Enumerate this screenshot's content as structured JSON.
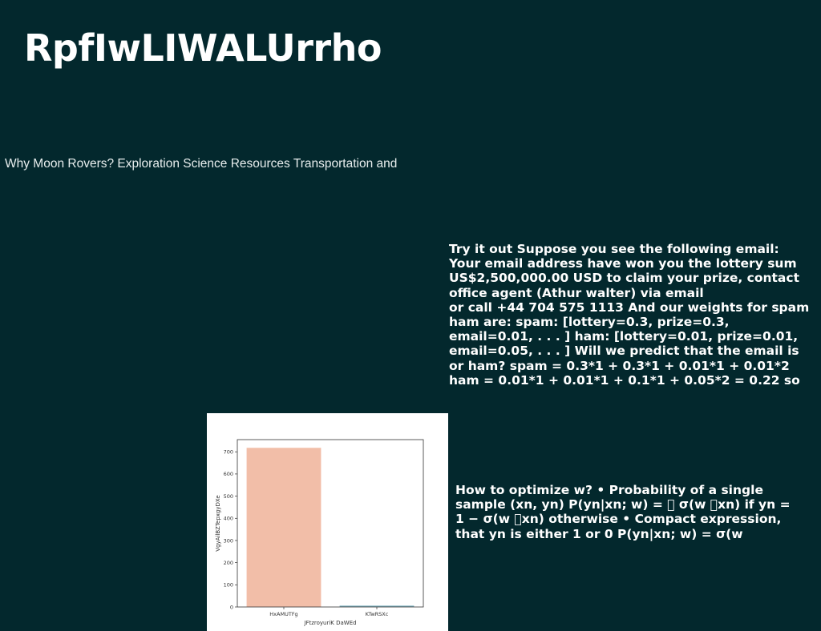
{
  "header": {
    "title": "RpfIwLIWALUrrho"
  },
  "subtitle": "Why Moon Rovers? Exploration Science Resources Transportation and",
  "block1": {
    "lines": [
      "Try it out Suppose you see the following email:",
      "Your email address have won you the lottery sum",
      "US$2,500,000.00 USD to claim your prize, contact",
      "office agent (Athur walter) via email",
      "or call +44 704 575 1113 And our weights for spam",
      "ham are: spam: [lottery=0.3, prize=0.3,",
      "email=0.01, . . . ] ham: [lottery=0.01, prize=0.01,",
      "email=0.05, . . . ] Will we predict that the email is",
      "or ham? spam = 0.3*1 + 0.3*1 + 0.01*1 + 0.01*2",
      "ham = 0.01*1 + 0.01*1 + 0.1*1 + 0.05*2 = 0.22 so"
    ]
  },
  "block2": {
    "lines": [
      "How to optimize w? • Probability of a single",
      "sample (xn, yn) P(yn|xn; w) = \u0000 σ(w \u0000xn) if yn =",
      "1 − σ(w \u0000xn) otherwise • Compact expression,",
      "that yn is either 1 or 0 P(yn|xn; w) = σ(w"
    ]
  },
  "chart_data": {
    "type": "bar",
    "categories": [
      "HxAMUTFg",
      "KTwRSXc"
    ],
    "values": [
      718,
      6
    ],
    "colors": [
      "#f2bea8",
      "#7fb0bd"
    ],
    "xlabel": "JFtzroyuriK DaWEd",
    "ylabel": "VgyAilBZTepxgyDXe",
    "yticks": [
      0,
      100,
      200,
      300,
      400,
      500,
      600,
      700
    ],
    "ylim": [
      0,
      755
    ],
    "grid": false
  }
}
